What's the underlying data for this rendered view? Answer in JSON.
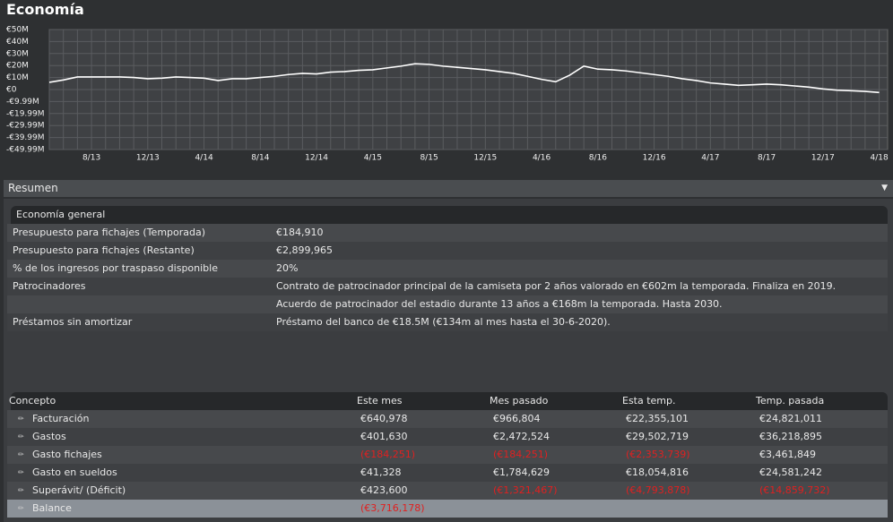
{
  "page_title": "Economía",
  "chart_data": {
    "type": "line",
    "grid": true,
    "line_color": "#ffffff",
    "categories": [
      null,
      null,
      null,
      "8/13",
      null,
      null,
      null,
      "12/13",
      null,
      null,
      null,
      "4/14",
      null,
      null,
      null,
      "8/14",
      null,
      null,
      null,
      "12/14",
      null,
      null,
      null,
      "4/15",
      null,
      null,
      null,
      "8/15",
      null,
      null,
      null,
      "12/15",
      null,
      null,
      null,
      "4/16",
      null,
      null,
      null,
      "8/16",
      null,
      null,
      null,
      "12/16",
      null,
      null,
      null,
      "4/17",
      null,
      null,
      null,
      "8/17",
      null,
      null,
      null,
      "12/17",
      null,
      null,
      null,
      "4/18"
    ],
    "values": [
      6,
      8,
      10.5,
      10.5,
      10.5,
      10.5,
      10,
      9,
      9.5,
      10.5,
      10,
      9.5,
      7.5,
      9,
      9,
      10,
      11,
      12.5,
      13.5,
      13,
      14.5,
      15,
      16,
      16.5,
      18,
      19.5,
      21.5,
      21,
      19.5,
      18.5,
      17.5,
      16.5,
      15,
      13.5,
      11,
      8.5,
      6.5,
      12,
      19.5,
      17,
      16.5,
      15.5,
      14,
      12.5,
      11,
      9,
      7.5,
      5.5,
      4.5,
      3.5,
      4,
      4.5,
      4,
      3,
      2,
      0.5,
      -0.5,
      -1,
      -1.5,
      -2.5
    ],
    "ylim": [
      -49.99,
      50
    ],
    "yticks": [
      {
        "value": 50,
        "label": "€50M"
      },
      {
        "value": 40,
        "label": "€40M"
      },
      {
        "value": 30,
        "label": "€30M"
      },
      {
        "value": 20,
        "label": "€20M"
      },
      {
        "value": 10,
        "label": "€10M"
      },
      {
        "value": 0,
        "label": "€0"
      },
      {
        "value": -9.99,
        "label": "-€9.99M"
      },
      {
        "value": -19.99,
        "label": "-€19.99M"
      },
      {
        "value": -29.99,
        "label": "-€29.99M"
      },
      {
        "value": -39.99,
        "label": "-€39.99M"
      },
      {
        "value": -49.99,
        "label": "-€49.99M"
      }
    ]
  },
  "summary": {
    "title": "Resumen",
    "general": {
      "title": "Economía general",
      "rows": [
        {
          "label": "Presupuesto para fichajes (Temporada)",
          "lines": [
            "€184,910"
          ]
        },
        {
          "label": "Presupuesto para fichajes (Restante)",
          "lines": [
            "€2,899,965"
          ]
        },
        {
          "label": "% de los ingresos por traspaso disponible",
          "lines": [
            "20%"
          ]
        },
        {
          "label": "Patrocinadores",
          "lines": [
            "Contrato de patrocinador principal de la camiseta por 2 años valorado en €602m la temporada. Finaliza en 2019.",
            "Acuerdo de patrocinador del estadio durante 13 años a €168m la temporada. Hasta 2030."
          ]
        },
        {
          "label": "Préstamos sin amortizar",
          "lines": [
            "Préstamo del banco de €18.5M (€134m al mes hasta el 30-6-2020)."
          ]
        }
      ]
    },
    "finances": {
      "headers": [
        "Concepto",
        "Este mes",
        "Mes pasado",
        "Esta temp.",
        "Temp. pasada"
      ],
      "rows": [
        {
          "cells": [
            "Facturación",
            "€640,978",
            "€966,804",
            "€22,355,101",
            "€24,821,011"
          ],
          "red": [
            false,
            false,
            false,
            false,
            false
          ]
        },
        {
          "cells": [
            "Gastos",
            "€401,630",
            "€2,472,524",
            "€29,502,719",
            "€36,218,895"
          ],
          "red": [
            false,
            false,
            false,
            false,
            false
          ]
        },
        {
          "cells": [
            "Gasto fichajes",
            "(€184,251)",
            "(€184,251)",
            "(€2,353,739)",
            "€3,461,849"
          ],
          "red": [
            false,
            true,
            true,
            true,
            false
          ]
        },
        {
          "cells": [
            "Gasto en sueldos",
            "€41,328",
            "€1,784,629",
            "€18,054,816",
            "€24,581,242"
          ],
          "red": [
            false,
            false,
            false,
            false,
            false
          ]
        },
        {
          "cells": [
            "Superávit/ (Déficit)",
            "€423,600",
            "(€1,321,467)",
            "(€4,793,878)",
            "(€14,859,732)"
          ],
          "red": [
            false,
            false,
            true,
            true,
            true
          ]
        },
        {
          "cells": [
            "Balance",
            "(€3,716,178)"
          ],
          "red": [
            false,
            true
          ],
          "highlight": true
        }
      ]
    }
  }
}
